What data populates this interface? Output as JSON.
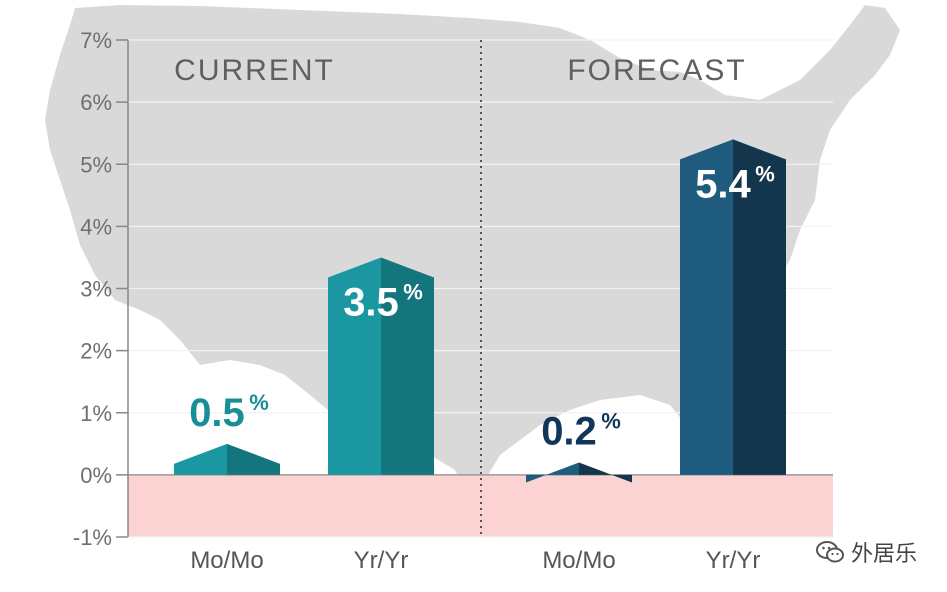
{
  "chart_data": {
    "type": "bar",
    "ylim": [
      -1,
      7
    ],
    "y_ticks": [
      "7%",
      "6%",
      "5%",
      "4%",
      "3%",
      "2%",
      "1%",
      "0%",
      "-1%"
    ],
    "grid": true,
    "sections": [
      {
        "title": "CURRENT",
        "categories": [
          "Mo/Mo",
          "Yr/Yr"
        ],
        "values": [
          0.5,
          3.5
        ],
        "value_labels": [
          "0.5",
          "3.5"
        ],
        "colors": [
          "#1a97a0",
          "#1a97a0"
        ]
      },
      {
        "title": "FORECAST",
        "categories": [
          "Mo/Mo",
          "Yr/Yr"
        ],
        "values": [
          0.2,
          5.4
        ],
        "value_labels": [
          "0.2",
          "5.4"
        ],
        "colors": [
          "#1f5a7f",
          "#1f5a7f"
        ]
      }
    ],
    "value_suffix": "%",
    "negative_region_color": "#fbd3d3",
    "background_map_color": "#d9d9d9"
  },
  "watermark": {
    "text": "外居乐"
  }
}
